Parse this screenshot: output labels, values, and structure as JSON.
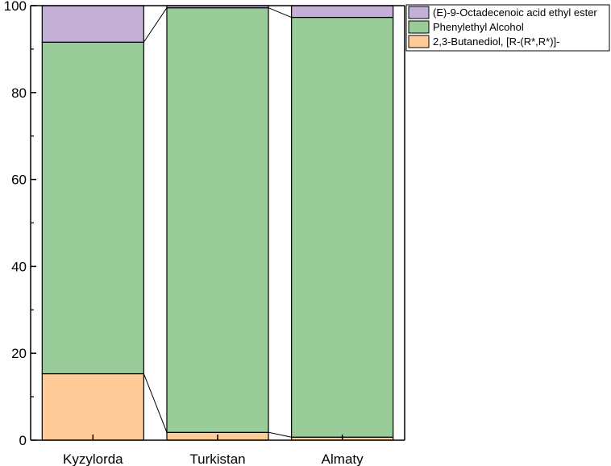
{
  "chart_data": {
    "type": "bar",
    "stacked": true,
    "categories": [
      "Kyzylorda",
      "Turkistan",
      "Almaty"
    ],
    "series": [
      {
        "name": "2,3-Butanediol, [R-(R*,R*)]-",
        "values": [
          15.3,
          1.8,
          0.7
        ],
        "color": "#ffcc99"
      },
      {
        "name": "Phenylethyl Alcohol",
        "values": [
          76.3,
          97.7,
          96.6
        ],
        "color": "#99cc99"
      },
      {
        "name": "(E)-9-Octadecenoic acid ethyl ester",
        "values": [
          8.4,
          0.5,
          2.7
        ],
        "color": "#c4b0d6"
      }
    ],
    "ylim": [
      0,
      100
    ],
    "yticks": [
      0,
      20,
      40,
      60,
      80,
      100
    ],
    "connect_lines": true,
    "legend_position": "top-right",
    "legend_order": [
      2,
      1,
      0
    ],
    "grid": false
  }
}
